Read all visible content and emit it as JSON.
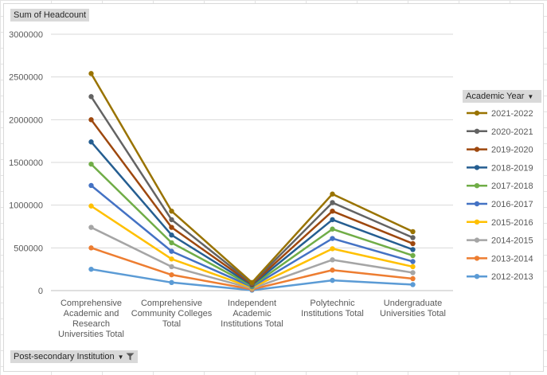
{
  "field_buttons": {
    "value": "Sum of Headcount",
    "legend": "Academic Year",
    "row": "Post-secondary Institution"
  },
  "chart_data": {
    "type": "line",
    "ylim": [
      0,
      3000000
    ],
    "yticks": [
      0,
      500000,
      1000000,
      1500000,
      2000000,
      2500000,
      3000000
    ],
    "ytick_labels": [
      "0",
      "500000",
      "1000000",
      "1500000",
      "2000000",
      "2500000",
      "3000000"
    ],
    "categories": [
      "Comprehensive Academic and Research Universities Total",
      "Comprehensive Community Colleges Total",
      "Independent Academic Institutions Total",
      "Polytechnic Institutions Total",
      "Undergraduate Universities Total"
    ],
    "category_lines": [
      [
        "Comprehensive",
        "Academic and",
        "Research",
        "Universities Total"
      ],
      [
        "Comprehensive",
        "Community Colleges",
        "Total"
      ],
      [
        "Independent",
        "Academic",
        "Institutions Total"
      ],
      [
        "Polytechnic",
        "Institutions Total"
      ],
      [
        "Undergraduate",
        "Universities Total"
      ]
    ],
    "legend_title": "Academic Year",
    "series": [
      {
        "name": "2021-2022",
        "color": "#997300",
        "values": [
          2540000,
          930000,
          95000,
          1130000,
          690000
        ]
      },
      {
        "name": "2020-2021",
        "color": "#636363",
        "values": [
          2270000,
          830000,
          85000,
          1030000,
          620000
        ]
      },
      {
        "name": "2019-2020",
        "color": "#9e480e",
        "values": [
          2000000,
          740000,
          75000,
          930000,
          550000
        ]
      },
      {
        "name": "2018-2019",
        "color": "#255e91",
        "values": [
          1740000,
          650000,
          65000,
          830000,
          480000
        ]
      },
      {
        "name": "2017-2018",
        "color": "#70ad47",
        "values": [
          1480000,
          560000,
          55000,
          720000,
          410000
        ]
      },
      {
        "name": "2016-2017",
        "color": "#4472c4",
        "values": [
          1230000,
          460000,
          45000,
          610000,
          340000
        ]
      },
      {
        "name": "2015-2016",
        "color": "#ffc000",
        "values": [
          990000,
          370000,
          35000,
          490000,
          280000
        ]
      },
      {
        "name": "2014-2015",
        "color": "#a5a5a5",
        "values": [
          740000,
          280000,
          25000,
          360000,
          210000
        ]
      },
      {
        "name": "2013-2014",
        "color": "#ed7d31",
        "values": [
          500000,
          185000,
          15000,
          240000,
          140000
        ]
      },
      {
        "name": "2012-2013",
        "color": "#5b9bd5",
        "values": [
          250000,
          95000,
          5000,
          120000,
          70000
        ]
      }
    ]
  }
}
